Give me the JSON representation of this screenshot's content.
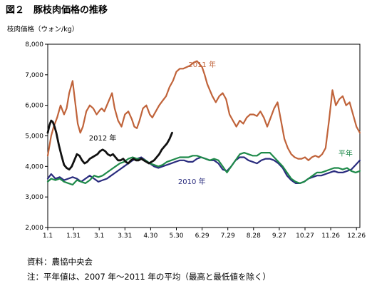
{
  "figure": {
    "title": "図２　豚枝肉価格の推移",
    "ylabel": "枝肉価格（ウォン/kg）",
    "source": "資料：農協中央会",
    "note": "注：平年値は、2007 年～2011 年の平均（最高と最低値を除く）"
  },
  "chart_data": {
    "type": "line",
    "title": "",
    "xlabel": "",
    "ylabel": "枝肉価格（ウォン/kg）",
    "ylim": [
      2000,
      8000
    ],
    "xlim": [
      1,
      365
    ],
    "yticks": [
      2000,
      3000,
      4000,
      5000,
      6000,
      7000,
      8000
    ],
    "ytick_labels": [
      "2,000",
      "3,000",
      "4,000",
      "5,000",
      "6,000",
      "7,000",
      "8,000"
    ],
    "xticks": [
      1,
      31,
      61,
      91,
      121,
      151,
      181,
      211,
      241,
      271,
      301,
      331,
      361
    ],
    "xtick_labels": [
      "1.1",
      "1.31",
      "3.1",
      "3.31",
      "4.30",
      "5.30",
      "6.29",
      "7.29",
      "8.28",
      "9.27",
      "10.27",
      "11.26",
      "12.26"
    ],
    "grid": false,
    "series": [
      {
        "name": "2011 年",
        "color": "#c0633a",
        "x": [
          1,
          5,
          8,
          12,
          16,
          20,
          23,
          26,
          30,
          33,
          36,
          39,
          42,
          46,
          50,
          54,
          58,
          62,
          64,
          67,
          70,
          73,
          76,
          79,
          83,
          87,
          91,
          95,
          99,
          102,
          105,
          108,
          112,
          116,
          120,
          123,
          127,
          131,
          135,
          139,
          143,
          147,
          151,
          155,
          159,
          163,
          167,
          171,
          175,
          178,
          181,
          184,
          187,
          190,
          193,
          197,
          201,
          205,
          209,
          213,
          217,
          221,
          225,
          229,
          233,
          237,
          241,
          245,
          249,
          253,
          257,
          261,
          265,
          269,
          273,
          277,
          281,
          285,
          289,
          293,
          297,
          301,
          305,
          309,
          313,
          317,
          321,
          325,
          329,
          333,
          337,
          341,
          345,
          349,
          353,
          357,
          361,
          365
        ],
        "values": [
          4350,
          5000,
          5300,
          5600,
          6000,
          5700,
          5900,
          6400,
          6800,
          6100,
          5400,
          5100,
          5300,
          5800,
          6000,
          5900,
          5700,
          5850,
          5900,
          5800,
          6000,
          6200,
          6400,
          5900,
          5500,
          5300,
          5700,
          5800,
          5550,
          5300,
          5250,
          5500,
          5900,
          6000,
          5700,
          5600,
          5800,
          6000,
          6150,
          6300,
          6600,
          6800,
          7100,
          7200,
          7200,
          7250,
          7300,
          7400,
          7450,
          7350,
          7250,
          7000,
          6700,
          6500,
          6300,
          6100,
          6300,
          6400,
          6200,
          5700,
          5500,
          5300,
          5500,
          5400,
          5600,
          5700,
          5700,
          5650,
          5800,
          5600,
          5300,
          5600,
          5900,
          6100,
          5500,
          4900,
          4600,
          4400,
          4300,
          4250,
          4250,
          4300,
          4200,
          4300,
          4350,
          4300,
          4400,
          4600,
          5500,
          6500,
          6000,
          6200,
          6300,
          6000,
          6100,
          5700,
          5300,
          5100
        ]
      },
      {
        "name": "2012 年",
        "color": "#111111",
        "x": [
          1,
          3,
          5,
          7,
          9,
          11,
          14,
          17,
          20,
          23,
          26,
          29,
          32,
          35,
          38,
          41,
          44,
          47,
          50,
          53,
          56,
          59,
          62,
          65,
          68,
          71,
          74,
          77,
          80,
          83,
          86,
          89,
          92,
          95,
          98,
          101,
          104,
          107,
          110,
          113,
          116,
          119,
          122,
          125,
          128,
          131,
          134,
          137,
          140,
          143,
          146
        ],
        "values": [
          5100,
          5350,
          5500,
          5450,
          5300,
          5100,
          4700,
          4350,
          4050,
          3950,
          3900,
          4000,
          4200,
          4400,
          4350,
          4200,
          4100,
          4150,
          4250,
          4300,
          4350,
          4400,
          4500,
          4550,
          4500,
          4400,
          4350,
          4400,
          4300,
          4200,
          4200,
          4250,
          4150,
          4100,
          4200,
          4250,
          4200,
          4200,
          4250,
          4200,
          4150,
          4100,
          4150,
          4200,
          4300,
          4400,
          4550,
          4650,
          4750,
          4900,
          5100
        ]
      },
      {
        "name": "2010 年",
        "color": "#2a2c7e",
        "x": [
          1,
          5,
          10,
          15,
          20,
          25,
          30,
          35,
          40,
          45,
          50,
          55,
          60,
          65,
          70,
          75,
          80,
          85,
          90,
          95,
          100,
          105,
          110,
          115,
          120,
          125,
          130,
          135,
          140,
          145,
          150,
          155,
          160,
          165,
          170,
          175,
          180,
          185,
          190,
          195,
          200,
          205,
          210,
          215,
          220,
          225,
          230,
          235,
          240,
          245,
          250,
          255,
          260,
          265,
          270,
          275,
          280,
          285,
          290,
          295,
          300,
          305,
          310,
          315,
          320,
          325,
          330,
          335,
          340,
          345,
          350,
          355,
          360,
          365
        ],
        "values": [
          3600,
          3750,
          3600,
          3650,
          3550,
          3600,
          3650,
          3600,
          3500,
          3600,
          3700,
          3600,
          3500,
          3550,
          3600,
          3700,
          3800,
          3900,
          4000,
          4100,
          4200,
          4250,
          4300,
          4200,
          4100,
          4000,
          3950,
          4000,
          4050,
          4100,
          4150,
          4200,
          4200,
          4150,
          4150,
          4250,
          4300,
          4250,
          4200,
          4200,
          4100,
          3900,
          3850,
          4000,
          4200,
          4300,
          4300,
          4200,
          4150,
          4100,
          4200,
          4250,
          4250,
          4200,
          4100,
          3950,
          3700,
          3550,
          3450,
          3450,
          3500,
          3600,
          3650,
          3700,
          3700,
          3750,
          3800,
          3850,
          3800,
          3800,
          3850,
          3900,
          4050,
          4200
        ]
      },
      {
        "name": "平年",
        "color": "#1f8a4a",
        "x": [
          1,
          5,
          10,
          15,
          20,
          25,
          30,
          35,
          40,
          45,
          50,
          55,
          60,
          65,
          70,
          75,
          80,
          85,
          90,
          95,
          100,
          105,
          110,
          115,
          120,
          125,
          130,
          135,
          140,
          145,
          150,
          155,
          160,
          165,
          170,
          175,
          180,
          185,
          190,
          195,
          200,
          205,
          210,
          215,
          220,
          225,
          230,
          235,
          240,
          245,
          250,
          255,
          260,
          265,
          270,
          275,
          280,
          285,
          290,
          295,
          300,
          305,
          310,
          315,
          320,
          325,
          330,
          335,
          340,
          345,
          350,
          355,
          360,
          365
        ],
        "values": [
          3500,
          3600,
          3550,
          3600,
          3500,
          3450,
          3400,
          3550,
          3500,
          3450,
          3550,
          3700,
          3650,
          3700,
          3800,
          3900,
          4000,
          4100,
          4150,
          4250,
          4300,
          4250,
          4250,
          4200,
          4100,
          4050,
          4000,
          4050,
          4150,
          4200,
          4250,
          4300,
          4300,
          4300,
          4350,
          4350,
          4300,
          4250,
          4200,
          4250,
          4200,
          4000,
          3800,
          4000,
          4200,
          4400,
          4450,
          4400,
          4350,
          4350,
          4450,
          4450,
          4450,
          4300,
          4150,
          4000,
          3800,
          3600,
          3500,
          3450,
          3500,
          3600,
          3700,
          3800,
          3800,
          3850,
          3900,
          3950,
          3950,
          3900,
          3950,
          3850,
          3800,
          3850
        ]
      }
    ],
    "annotations": [
      {
        "text": "2011 年",
        "series": "2011 年",
        "x": 165,
        "y": 7250
      },
      {
        "text": "2012 年",
        "series": "2012 年",
        "x": 49,
        "y": 4850
      },
      {
        "text": "2010 年",
        "series": "2010 年",
        "x": 153,
        "y": 3420
      },
      {
        "text": "平年",
        "series": "平年",
        "x": 340,
        "y": 4350
      }
    ]
  }
}
